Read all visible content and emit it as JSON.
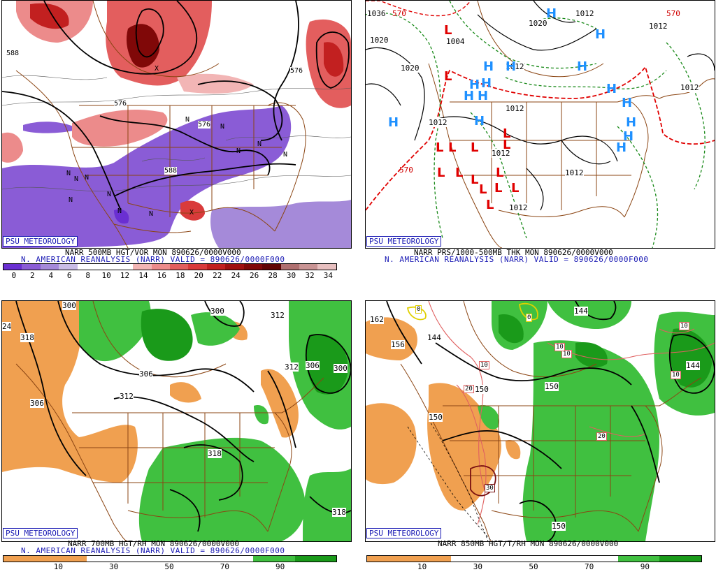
{
  "panels": [
    {
      "id": "vort500",
      "logo": "PSU METEOROLOGY",
      "caption_product": "NARR 500MB HGT/VOR MON 890626/0000V000",
      "caption_source": "N. AMERICAN REANALYSIS (NARR) VALID = 890626/0000F000",
      "colorbar": {
        "ticks": [
          "0",
          "2",
          "4",
          "6",
          "8",
          "10",
          "12",
          "14",
          "16",
          "18",
          "20",
          "22",
          "24",
          "26",
          "28",
          "30",
          "32",
          "34"
        ],
        "colors": [
          "#6a2fd2",
          "#8a5cd6",
          "#a58ad9",
          "#c9bde6",
          "#ffffff",
          "#ffffff",
          "#ffffff",
          "#f2b5b5",
          "#ec8b8b",
          "#e35e5e",
          "#d93b3b",
          "#c22020",
          "#a01010",
          "#800808",
          "#610404",
          "#b07070",
          "#c99494",
          "#e8c0c0"
        ]
      },
      "contour_labels": [
        "588",
        "576",
        "576",
        "576",
        "588",
        "588",
        "588",
        "588",
        "588"
      ],
      "markers": [
        {
          "t": "N"
        },
        {
          "t": "N"
        },
        {
          "t": "N"
        },
        {
          "t": "N"
        },
        {
          "t": "N"
        },
        {
          "t": "N"
        },
        {
          "t": "N"
        },
        {
          "t": "N"
        },
        {
          "t": "N"
        },
        {
          "t": "N"
        },
        {
          "t": "N"
        },
        {
          "t": "N"
        },
        {
          "t": "X"
        },
        {
          "t": "X"
        }
      ]
    },
    {
      "id": "mslp",
      "logo": "PSU METEOROLOGY",
      "caption_product": "NARR PRS/1000-500MB THK MON 890626/0000V000",
      "caption_source": "N. AMERICAN REANALYSIS (NARR) VALID = 890626/0000F000",
      "contour_labels": [
        "1036",
        "1020",
        "1020",
        "1004",
        "1012",
        "1020",
        "1012",
        "1012",
        "1012",
        "1012",
        "1012",
        "1012",
        "1012",
        "1012",
        "570",
        "570",
        "570"
      ],
      "highs": [
        "H",
        "H",
        "H",
        "H",
        "H",
        "H",
        "H",
        "H",
        "H",
        "H",
        "H",
        "H",
        "H",
        "H",
        "H",
        "H"
      ],
      "lows": [
        "L",
        "L",
        "L",
        "L",
        "L",
        "L",
        "L",
        "L",
        "L",
        "L",
        "L",
        "L",
        "L",
        "L",
        "L"
      ]
    },
    {
      "id": "rh700",
      "logo": "PSU METEOROLOGY",
      "caption_product": "NARR 700MB HGT/RH MON 890626/0000V000",
      "caption_source": "N. AMERICAN REANALYSIS (NARR) VALID = 890626/0000F000",
      "colorbar": {
        "ticks": [
          "10",
          "30",
          "50",
          "70",
          "90"
        ],
        "colors": [
          "#f0a050",
          "#f0a050",
          "#ffffff",
          "#ffffff",
          "#ffffff",
          "#ffffff",
          "#40c040",
          "#1a9a1a"
        ]
      },
      "contour_labels": [
        "300",
        "300",
        "312",
        "318",
        "24",
        "306",
        "312",
        "312",
        "306",
        "300",
        "318",
        "318",
        "306"
      ]
    },
    {
      "id": "t850",
      "logo": "PSU METEOROLOGY",
      "caption_product": "NARR 850MB HGT/T/RH MON 890626/0000V000",
      "colorbar": {
        "ticks": [
          "10",
          "30",
          "50",
          "70",
          "90"
        ],
        "colors": [
          "#f0a050",
          "#f0a050",
          "#ffffff",
          "#ffffff",
          "#ffffff",
          "#ffffff",
          "#40c040",
          "#1a9a1a"
        ]
      },
      "contour_labels": [
        "162",
        "156",
        "144",
        "144",
        "150",
        "150",
        "150",
        "144",
        "150"
      ],
      "temp_labels": [
        "0",
        "0",
        "10",
        "10",
        "10",
        "20",
        "20",
        "30",
        "10",
        "10"
      ]
    }
  ]
}
